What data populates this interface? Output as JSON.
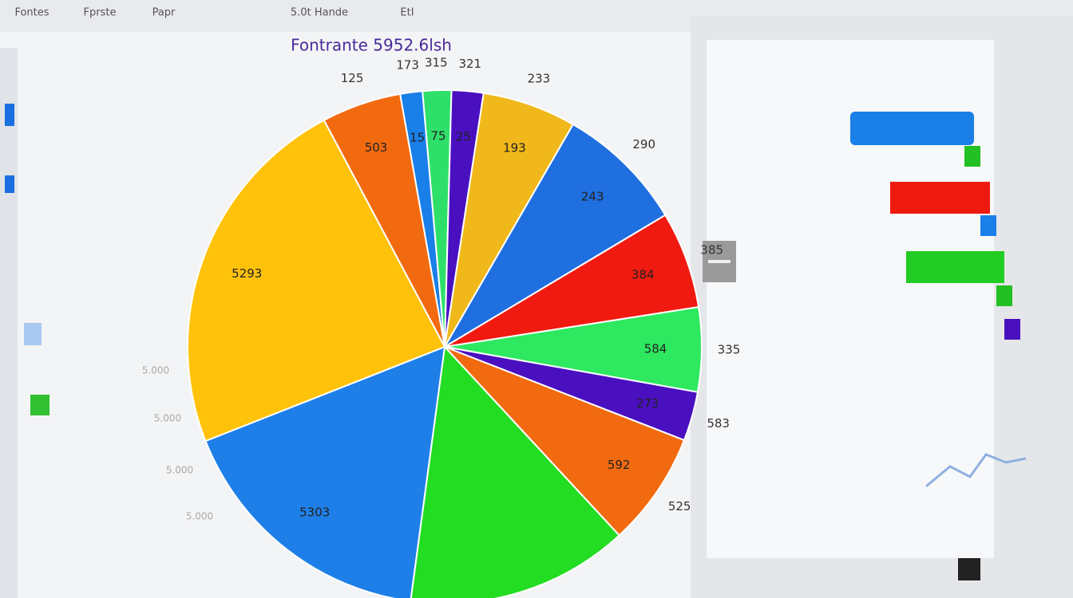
{
  "chart_data": {
    "type": "pie",
    "title": "Fontrante 5952.6lsh",
    "categories": [
      null,
      null,
      null,
      null,
      null,
      null,
      null,
      null,
      null,
      null,
      null,
      null,
      null
    ],
    "values": [
      1.4,
      1.8,
      2.0,
      5.9,
      8.1,
      6.1,
      5.3,
      3.1,
      7.2,
      14.0,
      16.9,
      23.2,
      5.0
    ],
    "colors": [
      "#1a7fe8",
      "#2ee06a",
      "#4a10c0",
      "#f0b81a",
      "#1f6fe0",
      "#f01a10",
      "#2ee860",
      "#4a10c0",
      "#f26a10",
      "#22dd22",
      "#1f7fe8",
      "#ffc20a",
      "#f26a0f"
    ],
    "outer_labels": [
      "173",
      "315",
      "321",
      "233",
      "290",
      "385",
      "335",
      "583",
      "525",
      null,
      null,
      null,
      "125"
    ],
    "inner_labels": [
      "15",
      "75",
      "25",
      "193",
      "243",
      "384",
      "584",
      "273",
      "592",
      null,
      "5303",
      "5293",
      "503"
    ]
  },
  "ui": {
    "tabs": [
      "Fontes",
      "Fprste",
      "Papr",
      "5.0t Hande",
      "EtI"
    ],
    "side_labels": [
      "5.000",
      "5.000",
      "5.000",
      "5.000"
    ]
  }
}
